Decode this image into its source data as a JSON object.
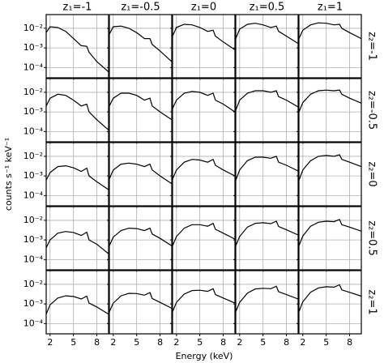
{
  "xlabel": "Energy (keV)",
  "ylabel": "counts s⁻¹ keV⁻¹",
  "axes": {
    "xlim": [
      1.5,
      9.5
    ],
    "xticks": [
      2,
      5,
      8
    ],
    "ylim": [
      3e-05,
      0.05
    ],
    "log_y": true,
    "yticks": [
      {
        "value": 0.01,
        "label": "10⁻²"
      },
      {
        "value": 0.001,
        "label": "10⁻³"
      },
      {
        "value": 0.0001,
        "label": "10⁻⁴"
      }
    ],
    "grid": true,
    "color": "#000000"
  },
  "chart_data": [
    {
      "type": "line",
      "title": "z₁=-1",
      "x": [
        1.5,
        2,
        3,
        4,
        5,
        6,
        6.7,
        7,
        8,
        9.5
      ],
      "values": [
        0.006,
        0.012,
        0.011,
        0.007,
        0.003,
        0.0013,
        0.0012,
        0.0006,
        0.0002,
        6e-05
      ]
    },
    {
      "type": "line",
      "title": "z₁=-0.5",
      "x": [
        1.5,
        2,
        3,
        4,
        5,
        6,
        6.7,
        7,
        8,
        9.5
      ],
      "values": [
        0.005,
        0.012,
        0.013,
        0.01,
        0.006,
        0.003,
        0.003,
        0.0015,
        0.0007,
        0.0002
      ]
    },
    {
      "type": "line",
      "title": "z₁=0",
      "x": [
        1.5,
        2,
        3,
        4,
        5,
        6,
        6.7,
        7,
        8,
        9.5
      ],
      "values": [
        0.004,
        0.011,
        0.016,
        0.015,
        0.011,
        0.007,
        0.008,
        0.004,
        0.002,
        0.0008
      ]
    },
    {
      "type": "line",
      "title": "z₁=0.5",
      "x": [
        1.5,
        2,
        3,
        4,
        5,
        6,
        6.7,
        7,
        8,
        9.5
      ],
      "values": [
        0.003,
        0.009,
        0.016,
        0.018,
        0.015,
        0.011,
        0.013,
        0.007,
        0.004,
        0.0017
      ]
    },
    {
      "type": "line",
      "title": "z₁=1",
      "side_label": "z₂=-1",
      "x": [
        1.5,
        2,
        3,
        4,
        5,
        6,
        6.7,
        7,
        8,
        9.5
      ],
      "values": [
        0.003,
        0.008,
        0.015,
        0.019,
        0.018,
        0.015,
        0.016,
        0.01,
        0.006,
        0.003
      ]
    },
    {
      "type": "line",
      "x": [
        1.5,
        2,
        3,
        4,
        5,
        6,
        6.7,
        7,
        8,
        9.5
      ],
      "values": [
        0.002,
        0.005,
        0.008,
        0.007,
        0.004,
        0.002,
        0.0025,
        0.001,
        0.0004,
        0.00012
      ]
    },
    {
      "type": "line",
      "x": [
        1.5,
        2,
        3,
        4,
        5,
        6,
        6.7,
        7,
        8,
        9.5
      ],
      "values": [
        0.002,
        0.005,
        0.009,
        0.009,
        0.007,
        0.004,
        0.005,
        0.002,
        0.001,
        0.0004
      ]
    },
    {
      "type": "line",
      "x": [
        1.5,
        2,
        3,
        4,
        5,
        6,
        6.7,
        7,
        8,
        9.5
      ],
      "values": [
        0.0015,
        0.004,
        0.009,
        0.011,
        0.01,
        0.007,
        0.009,
        0.004,
        0.0025,
        0.001
      ]
    },
    {
      "type": "line",
      "x": [
        1.5,
        2,
        3,
        4,
        5,
        6,
        6.7,
        7,
        8,
        9.5
      ],
      "values": [
        0.0012,
        0.004,
        0.009,
        0.012,
        0.012,
        0.01,
        0.012,
        0.006,
        0.004,
        0.0018
      ]
    },
    {
      "type": "line",
      "side_label": "z₂=-0.5",
      "x": [
        1.5,
        2,
        3,
        4,
        5,
        6,
        6.7,
        7,
        8,
        9.5
      ],
      "values": [
        0.001,
        0.003,
        0.008,
        0.012,
        0.013,
        0.012,
        0.013,
        0.008,
        0.005,
        0.0028
      ]
    },
    {
      "type": "line",
      "x": [
        1.5,
        2,
        3,
        4,
        5,
        6,
        6.7,
        7,
        8,
        9.5
      ],
      "values": [
        0.0006,
        0.0015,
        0.003,
        0.0033,
        0.0026,
        0.0017,
        0.0025,
        0.001,
        0.0005,
        0.0002
      ]
    },
    {
      "type": "line",
      "x": [
        1.5,
        2,
        3,
        4,
        5,
        6,
        6.7,
        7,
        8,
        9.5
      ],
      "values": [
        0.0007,
        0.002,
        0.004,
        0.0045,
        0.004,
        0.003,
        0.004,
        0.002,
        0.001,
        0.0004
      ]
    },
    {
      "type": "line",
      "x": [
        1.5,
        2,
        3,
        4,
        5,
        6,
        6.7,
        7,
        8,
        9.5
      ],
      "values": [
        0.0007,
        0.002,
        0.005,
        0.007,
        0.0065,
        0.005,
        0.007,
        0.0035,
        0.002,
        0.001
      ]
    },
    {
      "type": "line",
      "x": [
        1.5,
        2,
        3,
        4,
        5,
        6,
        6.7,
        7,
        8,
        9.5
      ],
      "values": [
        0.0006,
        0.002,
        0.006,
        0.009,
        0.009,
        0.008,
        0.01,
        0.005,
        0.0035,
        0.0018
      ]
    },
    {
      "type": "line",
      "side_label": "z₂=0",
      "x": [
        1.5,
        2,
        3,
        4,
        5,
        6,
        6.7,
        7,
        8,
        9.5
      ],
      "values": [
        0.0006,
        0.002,
        0.006,
        0.01,
        0.011,
        0.01,
        0.012,
        0.007,
        0.005,
        0.003
      ]
    },
    {
      "type": "line",
      "x": [
        1.5,
        2,
        3,
        4,
        5,
        6,
        6.7,
        7,
        8,
        9.5
      ],
      "values": [
        0.0004,
        0.001,
        0.0022,
        0.0027,
        0.0024,
        0.0017,
        0.0025,
        0.001,
        0.0006,
        0.0002
      ]
    },
    {
      "type": "line",
      "x": [
        1.5,
        2,
        3,
        4,
        5,
        6,
        6.7,
        7,
        8,
        9.5
      ],
      "values": [
        0.0005,
        0.0014,
        0.003,
        0.004,
        0.0038,
        0.003,
        0.004,
        0.002,
        0.0012,
        0.0005
      ]
    },
    {
      "type": "line",
      "x": [
        1.5,
        2,
        3,
        4,
        5,
        6,
        6.7,
        7,
        8,
        9.5
      ],
      "values": [
        0.0005,
        0.0015,
        0.004,
        0.006,
        0.006,
        0.005,
        0.007,
        0.0035,
        0.0022,
        0.0011
      ]
    },
    {
      "type": "line",
      "x": [
        1.5,
        2,
        3,
        4,
        5,
        6,
        6.7,
        7,
        8,
        9.5
      ],
      "values": [
        0.0005,
        0.0015,
        0.0045,
        0.007,
        0.0075,
        0.0068,
        0.009,
        0.0048,
        0.0033,
        0.0018
      ]
    },
    {
      "type": "line",
      "side_label": "z₂=0.5",
      "x": [
        1.5,
        2,
        3,
        4,
        5,
        6,
        6.7,
        7,
        8,
        9.5
      ],
      "values": [
        0.0005,
        0.0016,
        0.005,
        0.008,
        0.009,
        0.0085,
        0.011,
        0.006,
        0.0045,
        0.0028
      ]
    },
    {
      "type": "line",
      "x": [
        1.5,
        2,
        3,
        4,
        5,
        6,
        6.7,
        7,
        8,
        9.5
      ],
      "values": [
        0.0003,
        0.0009,
        0.002,
        0.0026,
        0.0024,
        0.0018,
        0.0025,
        0.0011,
        0.0007,
        0.0003
      ]
    },
    {
      "type": "line",
      "x": [
        1.5,
        2,
        3,
        4,
        5,
        6,
        6.7,
        7,
        8,
        9.5
      ],
      "values": [
        0.0004,
        0.0011,
        0.0026,
        0.0035,
        0.0034,
        0.0028,
        0.0038,
        0.0019,
        0.0012,
        0.0006
      ]
    },
    {
      "type": "line",
      "x": [
        1.5,
        2,
        3,
        4,
        5,
        6,
        6.7,
        7,
        8,
        9.5
      ],
      "values": [
        0.0004,
        0.0012,
        0.0032,
        0.0048,
        0.005,
        0.0044,
        0.006,
        0.003,
        0.002,
        0.0011
      ]
    },
    {
      "type": "line",
      "x": [
        1.5,
        2,
        3,
        4,
        5,
        6,
        6.7,
        7,
        8,
        9.5
      ],
      "values": [
        0.0004,
        0.0012,
        0.0036,
        0.0058,
        0.0063,
        0.006,
        0.008,
        0.0042,
        0.003,
        0.0018
      ]
    },
    {
      "type": "line",
      "side_label": "z₂=1",
      "x": [
        1.5,
        2,
        3,
        4,
        5,
        6,
        6.7,
        7,
        8,
        9.5
      ],
      "values": [
        0.0004,
        0.0013,
        0.004,
        0.0066,
        0.0075,
        0.0072,
        0.0095,
        0.0052,
        0.0039,
        0.0025
      ]
    }
  ]
}
